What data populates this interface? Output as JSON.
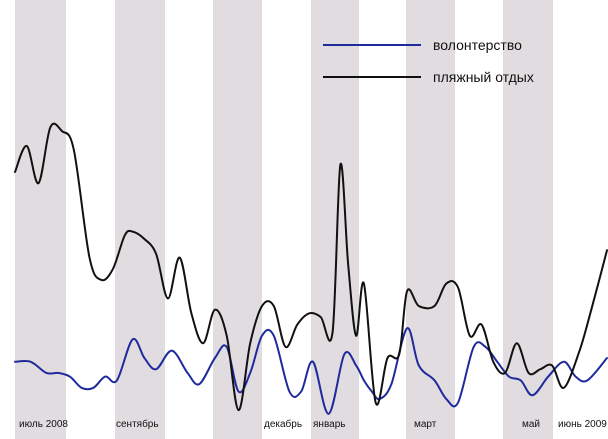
{
  "chart_data": {
    "type": "line",
    "title": "",
    "xlabel": "",
    "ylabel": "",
    "grid": false,
    "legend_position": "top-right",
    "background_bands": "alternating gray vertical bands",
    "x_ticks": [
      "июль 2008",
      "сентябрь",
      "декабрь",
      "январь",
      "март",
      "май",
      "июнь 2009"
    ],
    "series": [
      {
        "name": "волонтерство",
        "color": "#1f2a9c",
        "values": [
          [
            0,
            17
          ],
          [
            4,
            17
          ],
          [
            8,
            14
          ],
          [
            11,
            14
          ],
          [
            14,
            13
          ],
          [
            17,
            10
          ],
          [
            20,
            10
          ],
          [
            23,
            13
          ],
          [
            26,
            12
          ],
          [
            30,
            23
          ],
          [
            33,
            18
          ],
          [
            36,
            15
          ],
          [
            40,
            20
          ],
          [
            44,
            14
          ],
          [
            47,
            11
          ],
          [
            51,
            18
          ],
          [
            54,
            21
          ],
          [
            57,
            9
          ],
          [
            60,
            14
          ],
          [
            63,
            24
          ],
          [
            66,
            24
          ],
          [
            70,
            9
          ],
          [
            73,
            9
          ],
          [
            76,
            17
          ],
          [
            80,
            3
          ],
          [
            84,
            19
          ],
          [
            87,
            16
          ],
          [
            89,
            12
          ],
          [
            91,
            9
          ],
          [
            93,
            7
          ],
          [
            96,
            11
          ],
          [
            100,
            26
          ],
          [
            103,
            16
          ],
          [
            107,
            12
          ],
          [
            110,
            7
          ],
          [
            113,
            6
          ],
          [
            117,
            21
          ],
          [
            120,
            21
          ],
          [
            123,
            17
          ],
          [
            126,
            13
          ],
          [
            129,
            12
          ],
          [
            132,
            8
          ],
          [
            136,
            13
          ],
          [
            140,
            17
          ],
          [
            143,
            13
          ],
          [
            146,
            12
          ],
          [
            151,
            18
          ]
        ]
      },
      {
        "name": "пляжный отдых",
        "color": "#111111",
        "values": [
          [
            0,
            68
          ],
          [
            3,
            75
          ],
          [
            6,
            65
          ],
          [
            9,
            80
          ],
          [
            12,
            79
          ],
          [
            15,
            74
          ],
          [
            19,
            45
          ],
          [
            22,
            39
          ],
          [
            25,
            42
          ],
          [
            28,
            51
          ],
          [
            30,
            52
          ],
          [
            33,
            50
          ],
          [
            36,
            46
          ],
          [
            39,
            34
          ],
          [
            42,
            45
          ],
          [
            45,
            30
          ],
          [
            48,
            22
          ],
          [
            51,
            31
          ],
          [
            54,
            24
          ],
          [
            57,
            4
          ],
          [
            60,
            22
          ],
          [
            63,
            32
          ],
          [
            66,
            32
          ],
          [
            69,
            21
          ],
          [
            72,
            27
          ],
          [
            75,
            30
          ],
          [
            78,
            29
          ],
          [
            81,
            25
          ],
          [
            83,
            70
          ],
          [
            85,
            43
          ],
          [
            87,
            24
          ],
          [
            89,
            38
          ],
          [
            92,
            6
          ],
          [
            95,
            18
          ],
          [
            98,
            19
          ],
          [
            100,
            36
          ],
          [
            103,
            32
          ],
          [
            107,
            32
          ],
          [
            110,
            38
          ],
          [
            113,
            37
          ],
          [
            116,
            24
          ],
          [
            119,
            27
          ],
          [
            122,
            17
          ],
          [
            125,
            14
          ],
          [
            128,
            22
          ],
          [
            131,
            14
          ],
          [
            134,
            15
          ],
          [
            137,
            16
          ],
          [
            140,
            10
          ],
          [
            144,
            20
          ],
          [
            147,
            31
          ],
          [
            151,
            47
          ]
        ]
      }
    ]
  }
}
